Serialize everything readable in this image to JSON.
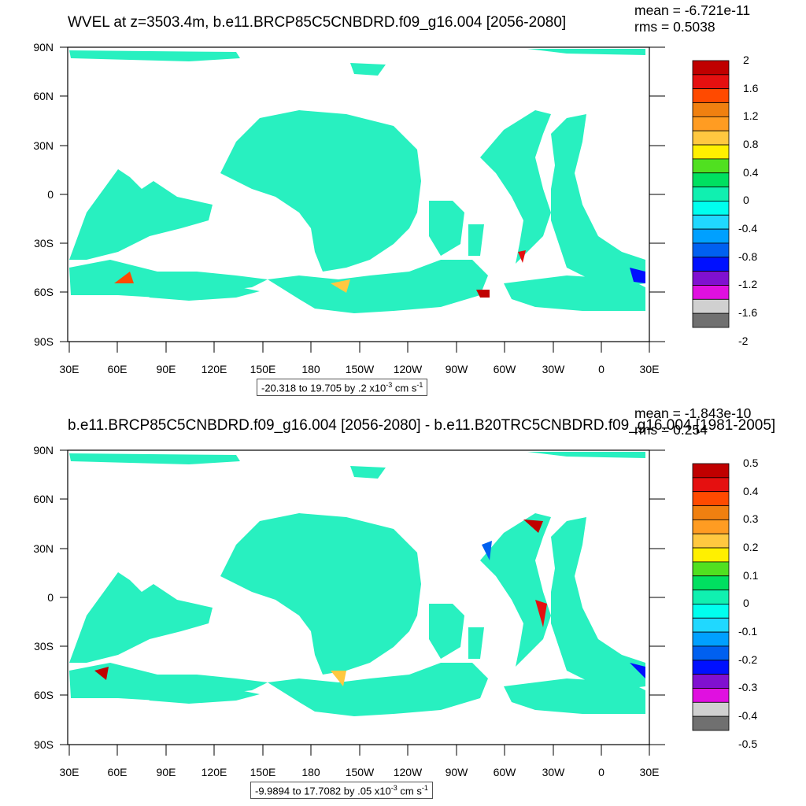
{
  "panels": [
    {
      "title": "WVEL at z=3503.4m, b.e11.BRCP85C5CNBDRD.f09_g16.004 [2056-2080]",
      "mean": "mean = -6.721e-11",
      "rms": "rms = 0.5038",
      "range_text": "-20.318 to 19.705 by .2 x10",
      "range_exp": "-3",
      "range_unit": " cm s",
      "range_unit_exp": "-1",
      "colorbar_labels": [
        "2",
        "1.6",
        "1.2",
        "0.8",
        "0.4",
        "0",
        "-0.4",
        "-0.8",
        "-1.2",
        "-1.6",
        "-2"
      ]
    },
    {
      "title": "b.e11.BRCP85C5CNBDRD.f09_g16.004 [2056-2080] - b.e11.B20TRC5CNBDRD.f09_g16.004 [1981-2005]",
      "mean": "mean = -1.843e-10",
      "rms": "rms = 0.254",
      "range_text": "-9.9894 to 17.7082 by .05 x10",
      "range_exp": "-3",
      "range_unit": " cm s",
      "range_unit_exp": "-1",
      "colorbar_labels": [
        "0.5",
        "0.4",
        "0.3",
        "0.2",
        "0.1",
        "0",
        "-0.1",
        "-0.2",
        "-0.3",
        "-0.4",
        "-0.5"
      ]
    }
  ],
  "lat_labels": [
    "90N",
    "60N",
    "30N",
    "0",
    "30S",
    "60S",
    "90S"
  ],
  "lon_labels": [
    "30E",
    "60E",
    "90E",
    "120E",
    "150E",
    "180",
    "150W",
    "120W",
    "90W",
    "60W",
    "30W",
    "0",
    "30E"
  ],
  "colorbar_colors": [
    "#c00000",
    "#e51010",
    "#ff4a00",
    "#f08010",
    "#ff9c22",
    "#ffc840",
    "#fff000",
    "#50e020",
    "#00e060",
    "#10f0b0",
    "#00ffee",
    "#20d8ff",
    "#00a0ff",
    "#0060f0",
    "#0010ff",
    "#8010d0",
    "#e010e0",
    "#d0d0d0",
    "#707070"
  ],
  "ocean_color": "#28f0c0"
}
